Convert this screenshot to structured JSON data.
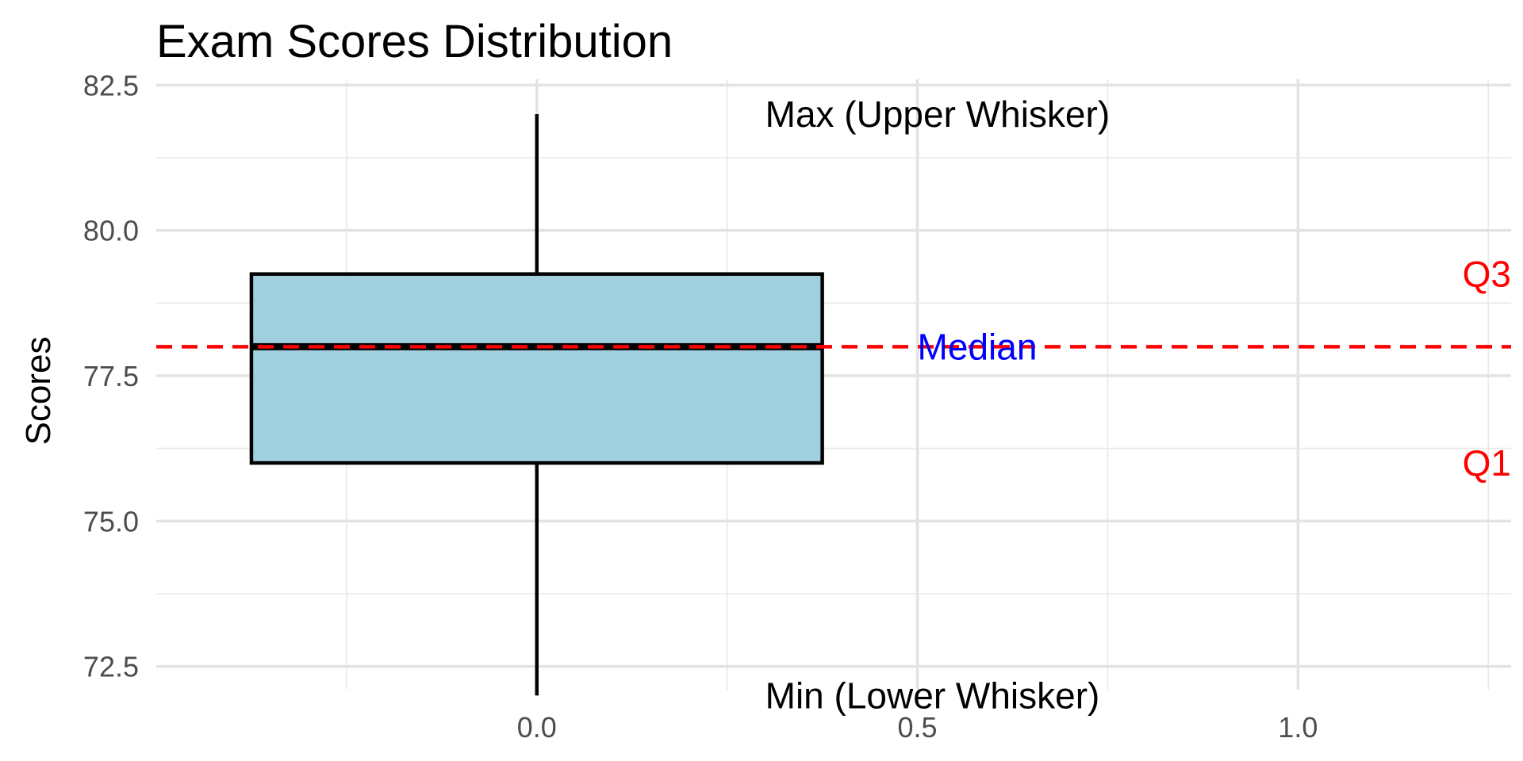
{
  "chart_data": {
    "type": "box",
    "title": "Exam Scores Distribution",
    "xlabel": "",
    "ylabel": "Scores",
    "xlim": [
      -0.5,
      1.28
    ],
    "ylim": [
      72.1,
      82.6
    ],
    "x_ticks": [
      0.0,
      0.5,
      1.0
    ],
    "x_tick_labels": [
      "0.0",
      "0.5",
      "1.0"
    ],
    "x_minor_ticks": [
      -0.25,
      0.25,
      0.75,
      1.25
    ],
    "y_ticks": [
      72.5,
      75.0,
      77.5,
      80.0,
      82.5
    ],
    "y_tick_labels": [
      "72.5",
      "75.0",
      "77.5",
      "80.0",
      "82.5"
    ],
    "y_minor_ticks": [
      73.75,
      76.25,
      78.75,
      81.25
    ],
    "grid": true,
    "box": {
      "x": 0.0,
      "x_left": -0.375,
      "x_right": 0.375,
      "min": 72.0,
      "q1": 76.0,
      "median": 78.0,
      "q3": 79.25,
      "max": 82.0,
      "fill": "#a0cfe0",
      "stroke": "#000000"
    },
    "reference_line": {
      "y": 78.0,
      "color": "#ff0000",
      "style": "dashed"
    },
    "annotations": [
      {
        "text": "Max (Upper Whisker)",
        "x": 0.3,
        "y": 82.0,
        "anchor": "start",
        "color": "#000000"
      },
      {
        "text": "Min (Lower Whisker)",
        "x": 0.3,
        "y": 72.0,
        "anchor": "start",
        "color": "#000000"
      },
      {
        "text": "Median",
        "x": 0.5,
        "y": 78.0,
        "anchor": "start",
        "color": "#0000ff"
      },
      {
        "text": "Q3",
        "x": 1.28,
        "y": 79.25,
        "anchor": "end",
        "color": "#ff0000"
      },
      {
        "text": "Q1",
        "x": 1.28,
        "y": 76.0,
        "anchor": "end",
        "color": "#ff0000"
      }
    ]
  }
}
